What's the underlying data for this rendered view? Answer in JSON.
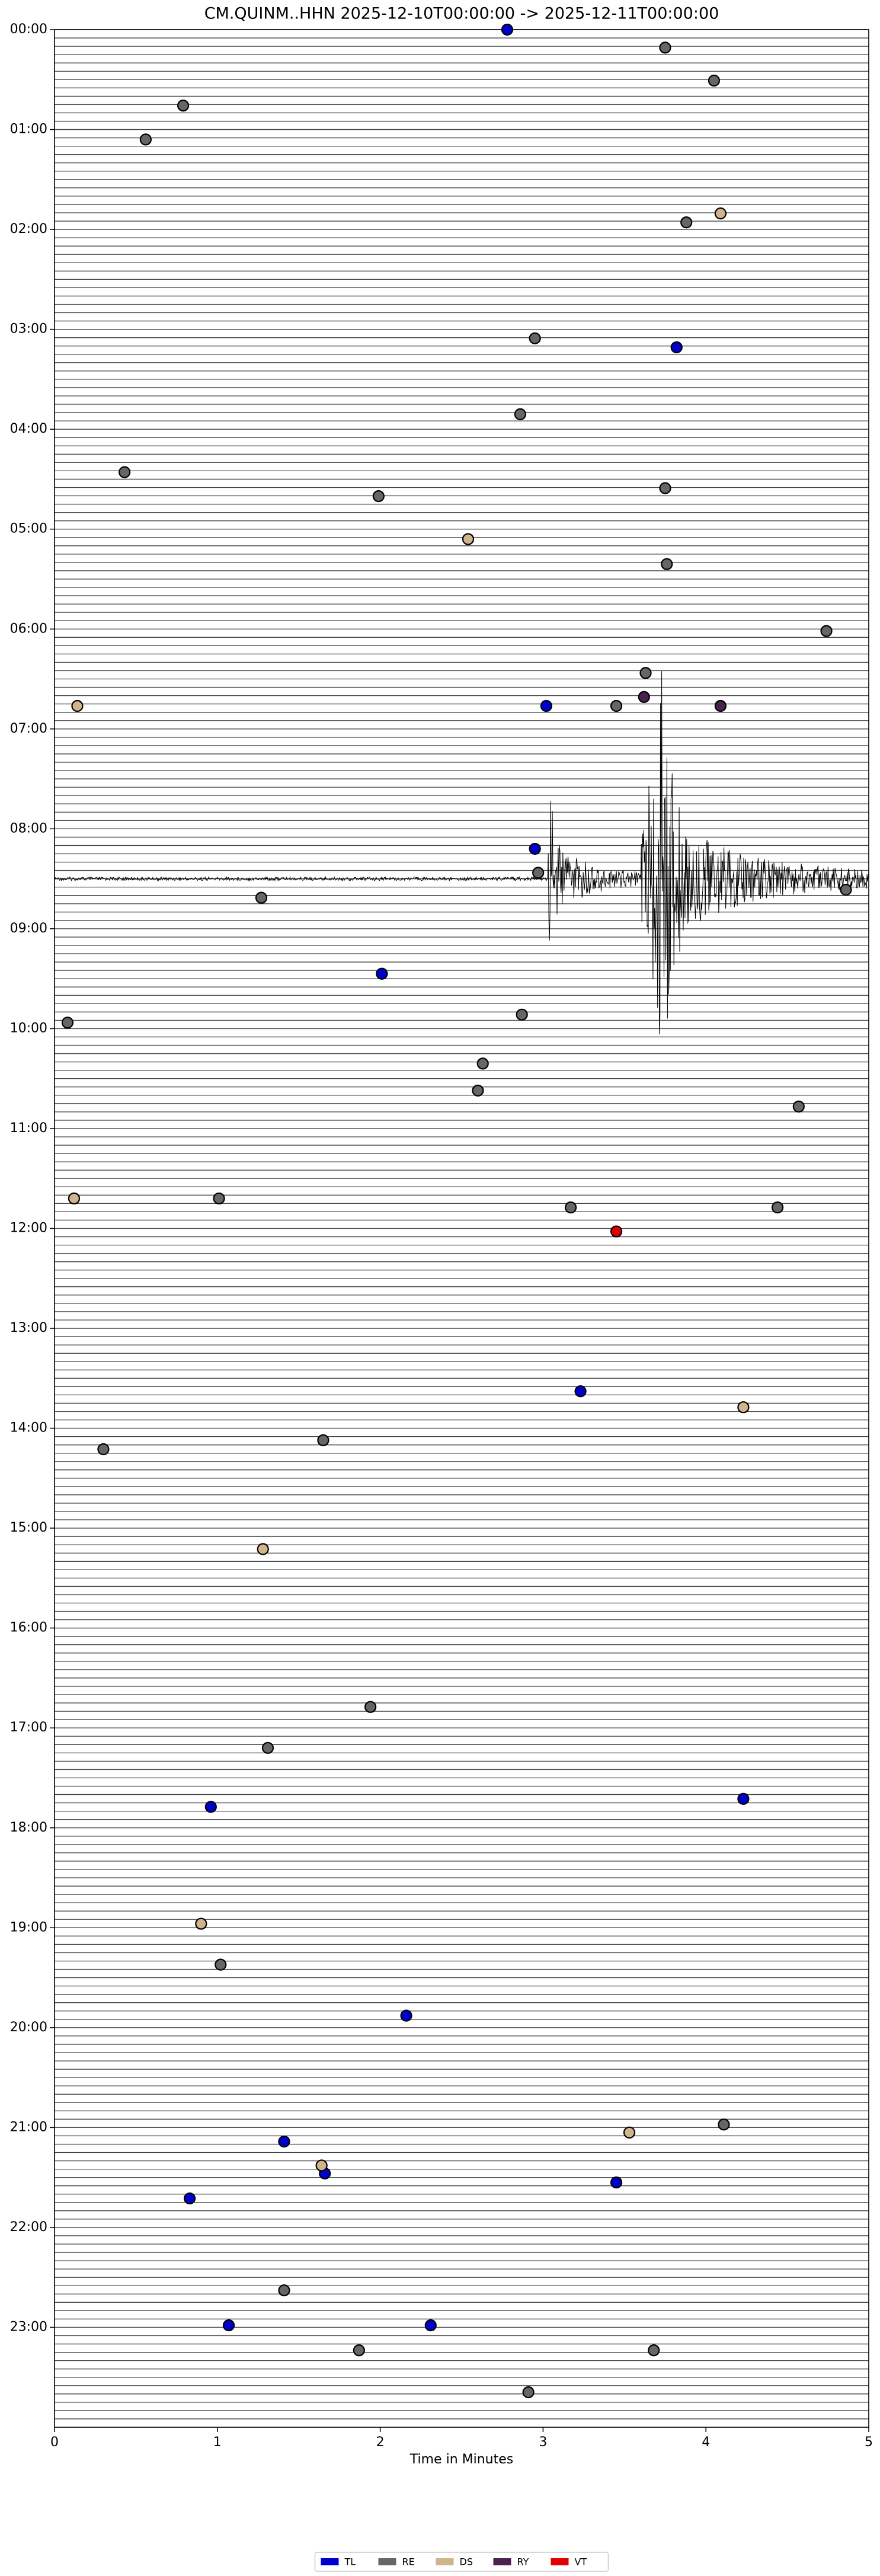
{
  "chart_data": {
    "type": "scatter",
    "title": "CM.QUINM..HHN  2025-12-10T00:00:00 -> 2025-12-11T00:00:00",
    "x_label": "Time in Minutes",
    "xlim": [
      0,
      5
    ],
    "xticks": [
      0,
      1,
      2,
      3,
      4,
      5
    ],
    "ylim": [
      24,
      0
    ],
    "yticks": [
      {
        "value": 0,
        "label": "00:00"
      },
      {
        "value": 1,
        "label": "01:00"
      },
      {
        "value": 2,
        "label": "02:00"
      },
      {
        "value": 3,
        "label": "03:00"
      },
      {
        "value": 4,
        "label": "04:00"
      },
      {
        "value": 5,
        "label": "05:00"
      },
      {
        "value": 6,
        "label": "06:00"
      },
      {
        "value": 7,
        "label": "07:00"
      },
      {
        "value": 8,
        "label": "08:00"
      },
      {
        "value": 9,
        "label": "09:00"
      },
      {
        "value": 10,
        "label": "10:00"
      },
      {
        "value": 11,
        "label": "11:00"
      },
      {
        "value": 12,
        "label": "12:00"
      },
      {
        "value": 13,
        "label": "13:00"
      },
      {
        "value": 14,
        "label": "14:00"
      },
      {
        "value": 15,
        "label": "15:00"
      },
      {
        "value": 16,
        "label": "16:00"
      },
      {
        "value": 17,
        "label": "17:00"
      },
      {
        "value": 18,
        "label": "18:00"
      },
      {
        "value": 19,
        "label": "19:00"
      },
      {
        "value": 20,
        "label": "20:00"
      },
      {
        "value": 21,
        "label": "21:00"
      },
      {
        "value": 22,
        "label": "22:00"
      },
      {
        "value": 23,
        "label": "23:00"
      }
    ],
    "legend": "bottom",
    "series": [
      {
        "name": "TL",
        "color": "#0000cc",
        "x": [
          2.78,
          3.82,
          3.02,
          2.95,
          2.01,
          3.23,
          0.96,
          4.23,
          2.16,
          1.41,
          1.66,
          3.45,
          0.83,
          1.07,
          2.31
        ],
        "values": [
          0.0,
          3.18,
          6.77,
          8.2,
          9.45,
          13.63,
          17.79,
          17.71,
          19.88,
          21.14,
          21.46,
          21.55,
          21.71,
          22.98,
          22.98
        ]
      },
      {
        "name": "RE",
        "color": "#666666",
        "x": [
          3.75,
          4.05,
          0.79,
          0.56,
          3.88,
          2.95,
          2.86,
          0.43,
          3.75,
          1.99,
          3.76,
          4.74,
          3.63,
          3.45,
          2.97,
          4.86,
          1.27,
          2.87,
          0.08,
          2.63,
          2.6,
          4.57,
          1.01,
          3.17,
          4.44,
          0.3,
          1.65,
          1.94,
          1.31,
          1.02,
          4.11,
          1.41,
          1.87,
          3.68,
          2.91
        ],
        "values": [
          0.18,
          0.51,
          0.76,
          1.1,
          1.93,
          3.09,
          3.85,
          4.43,
          4.59,
          4.67,
          5.35,
          6.02,
          6.44,
          6.77,
          8.44,
          8.61,
          8.69,
          9.86,
          9.94,
          10.35,
          10.62,
          10.78,
          11.7,
          11.79,
          11.79,
          14.21,
          14.12,
          16.79,
          17.2,
          19.37,
          20.97,
          22.63,
          23.23,
          23.23,
          23.65
        ]
      },
      {
        "name": "DS",
        "color": "#d2b48c",
        "x": [
          4.09,
          2.54,
          0.14,
          0.12,
          4.23,
          1.28,
          0.9,
          3.53,
          1.64
        ],
        "values": [
          1.84,
          5.1,
          6.77,
          11.7,
          13.79,
          15.21,
          18.96,
          21.05,
          21.38
        ]
      },
      {
        "name": "RY",
        "color": "#4b2150",
        "x": [
          3.62,
          4.09
        ],
        "values": [
          6.68,
          6.77
        ]
      },
      {
        "name": "VT",
        "color": "#e00000",
        "x": [
          3.45
        ],
        "values": [
          12.03
        ]
      }
    ]
  }
}
